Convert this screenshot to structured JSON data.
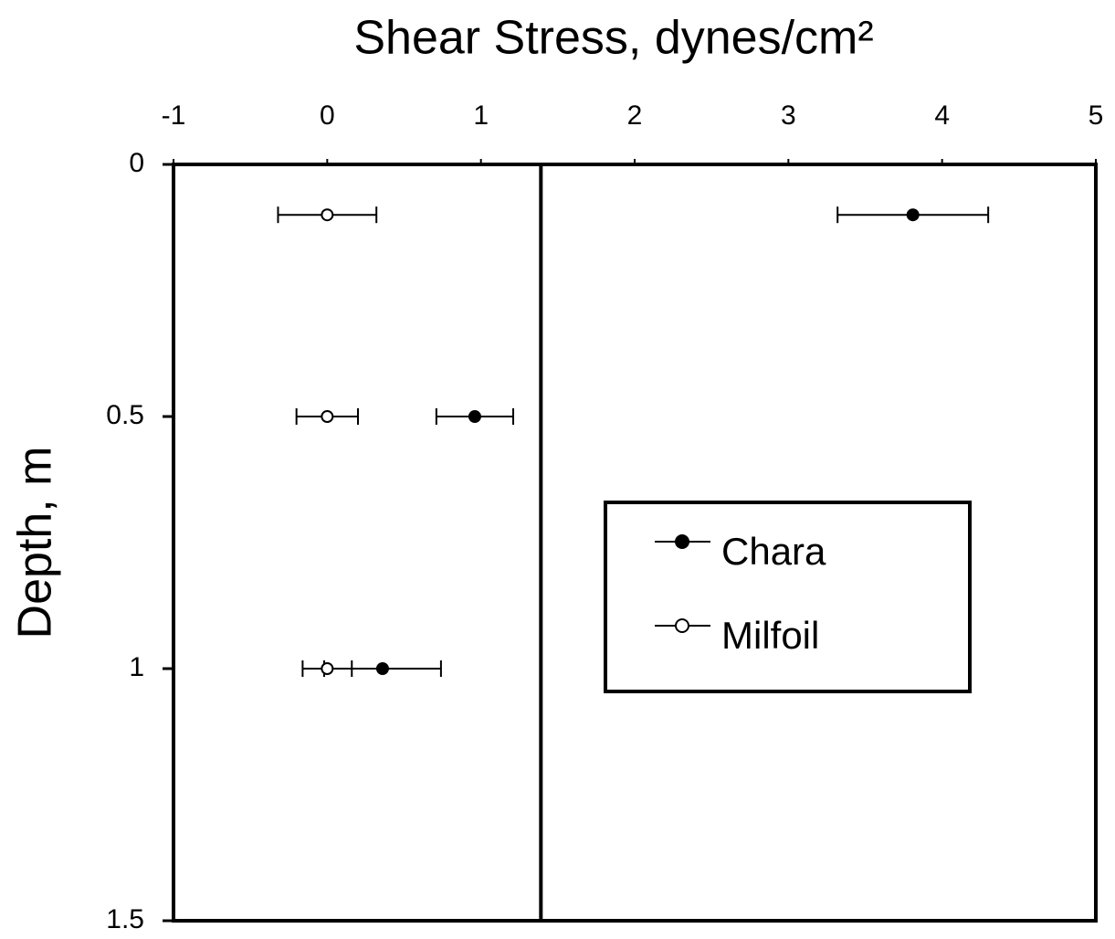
{
  "chart_data": {
    "type": "scatter",
    "title": "Shear Stress, dynes/cm²",
    "y_label": "Depth, m",
    "xlim": [
      -1,
      5
    ],
    "xticks": [
      -1,
      0,
      1,
      2,
      3,
      4,
      5
    ],
    "ylim": [
      1.5,
      0
    ],
    "yticks": [
      0,
      0.5,
      1,
      1.5
    ],
    "reference_x": 1.39,
    "series": [
      {
        "name": "Chara",
        "color": "#000000",
        "filled": true,
        "x": [
          3.81,
          0.96,
          0.36
        ],
        "y": [
          0.1,
          0.5,
          1.0
        ],
        "xerr": [
          0.49,
          0.25,
          0.38
        ]
      },
      {
        "name": "Milfoil",
        "color": "#000000",
        "filled": false,
        "x": [
          0,
          0,
          0
        ],
        "y": [
          0.1,
          0.5,
          1.0
        ],
        "xerr": [
          0.32,
          0.2,
          0.16
        ]
      }
    ]
  }
}
